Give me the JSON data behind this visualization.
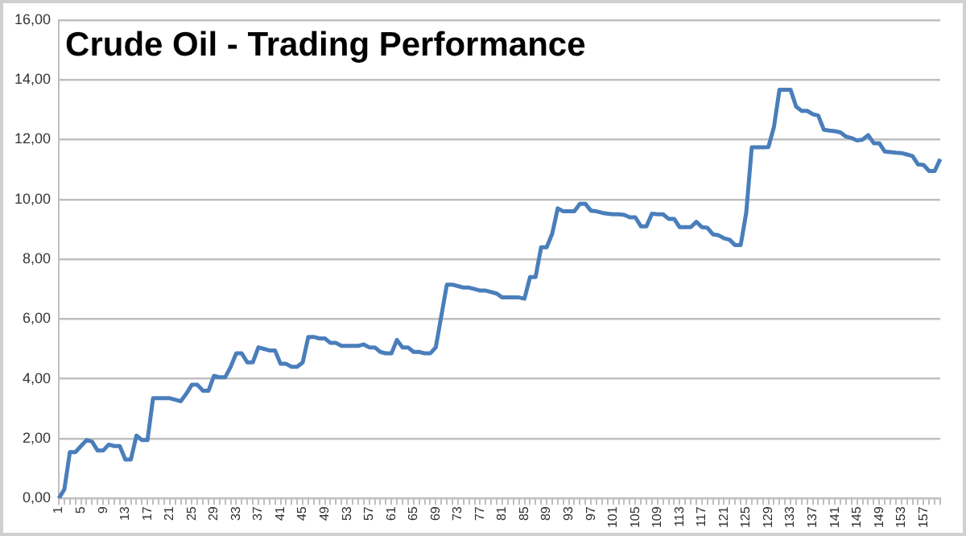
{
  "chart_data": {
    "type": "line",
    "title": "Crude Oil - Trading Performance",
    "categories": [
      "1",
      null,
      null,
      null,
      "5",
      null,
      null,
      null,
      "9",
      null,
      null,
      null,
      "13",
      null,
      null,
      null,
      "17",
      null,
      null,
      null,
      "21",
      null,
      null,
      null,
      "25",
      null,
      null,
      null,
      "29",
      null,
      null,
      null,
      "33",
      null,
      null,
      null,
      "37",
      null,
      null,
      null,
      "41",
      null,
      null,
      null,
      "45",
      null,
      null,
      null,
      "49",
      null,
      null,
      null,
      "53",
      null,
      null,
      null,
      "57",
      null,
      null,
      null,
      "61",
      null,
      null,
      null,
      "65",
      null,
      null,
      null,
      "69",
      null,
      null,
      null,
      "73",
      null,
      null,
      null,
      "77",
      null,
      null,
      null,
      "81",
      null,
      null,
      null,
      "85",
      null,
      null,
      null,
      "89",
      null,
      null,
      null,
      "93",
      null,
      null,
      null,
      "97",
      null,
      null,
      null,
      "101",
      null,
      null,
      null,
      "105",
      null,
      null,
      null,
      "109",
      null,
      null,
      null,
      "113",
      null,
      null,
      null,
      "117",
      null,
      null,
      null,
      "121",
      null,
      null,
      null,
      "125",
      null,
      null,
      null,
      "129",
      null,
      null,
      null,
      "133",
      null,
      null,
      null,
      "137",
      null,
      null,
      null,
      "141",
      null,
      null,
      null,
      "145",
      null,
      null,
      null,
      "149",
      null,
      null,
      null,
      "153",
      null,
      null,
      null,
      "157",
      null,
      null,
      null
    ],
    "series": [
      {
        "color": "#4a7ebb",
        "values": [
          0,
          0.3,
          1.55,
          1.55,
          1.75,
          1.95,
          1.9,
          1.6,
          1.6,
          1.8,
          1.75,
          1.75,
          1.3,
          1.3,
          2.1,
          1.95,
          1.95,
          3.35,
          3.35,
          3.35,
          3.35,
          3.3,
          3.25,
          3.5,
          3.8,
          3.8,
          3.6,
          3.6,
          4.1,
          4.05,
          4.05,
          4.4,
          4.85,
          4.85,
          4.55,
          4.55,
          5.05,
          5.0,
          4.95,
          4.95,
          4.5,
          4.5,
          4.4,
          4.4,
          4.55,
          5.4,
          5.4,
          5.35,
          5.35,
          5.2,
          5.2,
          5.1,
          5.1,
          5.1,
          5.1,
          5.15,
          5.05,
          5.05,
          4.9,
          4.85,
          4.85,
          5.3,
          5.05,
          5.05,
          4.9,
          4.9,
          4.85,
          4.85,
          5.05,
          6.1,
          7.15,
          7.15,
          7.1,
          7.05,
          7.05,
          7.0,
          6.95,
          6.95,
          6.9,
          6.85,
          6.72,
          6.72,
          6.72,
          6.72,
          6.68,
          7.4,
          7.4,
          8.4,
          8.4,
          8.85,
          9.7,
          9.6,
          9.6,
          9.6,
          9.85,
          9.85,
          9.62,
          9.6,
          9.55,
          9.52,
          9.5,
          9.5,
          9.48,
          9.4,
          9.4,
          9.1,
          9.1,
          9.52,
          9.5,
          9.5,
          9.35,
          9.35,
          9.07,
          9.07,
          9.07,
          9.25,
          9.07,
          9.05,
          8.83,
          8.8,
          8.7,
          8.65,
          8.47,
          8.47,
          9.55,
          11.74,
          11.74,
          11.74,
          11.75,
          12.42,
          13.67,
          13.67,
          13.67,
          13.1,
          12.96,
          12.96,
          12.85,
          12.8,
          12.33,
          12.3,
          12.28,
          12.24,
          12.1,
          12.05,
          11.97,
          12.0,
          12.15,
          11.88,
          11.88,
          11.6,
          11.58,
          11.56,
          11.55,
          11.5,
          11.45,
          11.17,
          11.15,
          10.95,
          10.95,
          11.35
        ]
      }
    ],
    "ylim": [
      0,
      16
    ],
    "yticks": [
      {
        "value": 0,
        "label": "0,00"
      },
      {
        "value": 2,
        "label": "2,00"
      },
      {
        "value": 4,
        "label": "4,00"
      },
      {
        "value": 6,
        "label": "6,00"
      },
      {
        "value": 8,
        "label": "8,00"
      },
      {
        "value": 10,
        "label": "10,00"
      },
      {
        "value": 12,
        "label": "12,00"
      },
      {
        "value": 14,
        "label": "14,00"
      },
      {
        "value": 16,
        "label": "16,00"
      }
    ],
    "grid": "y",
    "legend": false,
    "marker": "none",
    "line_style": "solid"
  }
}
